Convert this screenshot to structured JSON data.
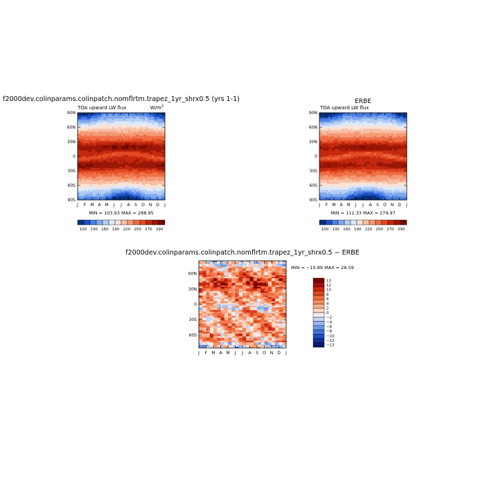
{
  "chart_data": [
    {
      "type": "heatmap",
      "title": "f2000dev.colinparams.colinpatch.nomflrtm.trapez_1yr_shrx0.5 (yrs 1-1)",
      "subtitle": "TOA upward LW flux",
      "units_base": "W/m",
      "units_exp": "2",
      "stats": "MIN = 103.93  MAX = 288.95",
      "x_ticks": [
        "J",
        "F",
        "M",
        "A",
        "M",
        "J",
        "J",
        "A",
        "S",
        "O",
        "N",
        "D",
        "J"
      ],
      "y_ticks": [
        {
          "lat": 90,
          "label": "90N"
        },
        {
          "lat": 60,
          "label": "60N"
        },
        {
          "lat": 30,
          "label": "30N"
        },
        {
          "lat": 0,
          "label": "0"
        },
        {
          "lat": -30,
          "label": "30S"
        },
        {
          "lat": -60,
          "label": "60S"
        },
        {
          "lat": -90,
          "label": "90S"
        }
      ],
      "ylim": [
        -90,
        90
      ],
      "colorbar": {
        "labels": [
          "100",
          "130",
          "160",
          "190",
          "220",
          "250",
          "270",
          "290"
        ],
        "colors": [
          "#08307a",
          "#1d4fc4",
          "#4a7fe6",
          "#7fa9ee",
          "#b3cdf5",
          "#dfe9f9",
          "#fbe2d4",
          "#f9bfa3",
          "#f59a76",
          "#ef6f47",
          "#e24a24",
          "#c4290f",
          "#9b1605",
          "#730900"
        ]
      }
    },
    {
      "type": "heatmap",
      "title": "ERBE",
      "subtitle": "TOA upward LW flux",
      "stats": "MIN = 111.33  MAX = 279.97",
      "x_ticks": [
        "J",
        "F",
        "M",
        "A",
        "M",
        "J",
        "J",
        "A",
        "S",
        "O",
        "N",
        "D",
        "J"
      ],
      "y_ticks": [
        {
          "lat": 90,
          "label": "90N"
        },
        {
          "lat": 60,
          "label": "60N"
        },
        {
          "lat": 30,
          "label": "30N"
        },
        {
          "lat": 0,
          "label": "0"
        },
        {
          "lat": -30,
          "label": "30S"
        },
        {
          "lat": -60,
          "label": "60S"
        },
        {
          "lat": -90,
          "label": "90S"
        }
      ],
      "ylim": [
        -90,
        90
      ],
      "colorbar": {
        "labels": [
          "100",
          "130",
          "160",
          "190",
          "220",
          "250",
          "270",
          "290"
        ],
        "colors": [
          "#08307a",
          "#1d4fc4",
          "#4a7fe6",
          "#7fa9ee",
          "#b3cdf5",
          "#dfe9f9",
          "#fbe2d4",
          "#f9bfa3",
          "#f59a76",
          "#ef6f47",
          "#e24a24",
          "#c4290f",
          "#9b1605",
          "#730900"
        ]
      }
    },
    {
      "type": "heatmap",
      "title": "f2000dev.colinparams.colinpatch.nomflrtm.trapez_1yr_shrx0.5 − ERBE",
      "stats": "MIN = −10.89  MAX =  28.59",
      "x_ticks": [
        "J",
        "F",
        "M",
        "A",
        "M",
        "J",
        "J",
        "A",
        "S",
        "O",
        "N",
        "D",
        "J"
      ],
      "y_ticks": [
        {
          "lat": 60,
          "label": "60N"
        },
        {
          "lat": 30,
          "label": "30N"
        },
        {
          "lat": 0,
          "label": "0"
        },
        {
          "lat": -30,
          "label": "30S"
        },
        {
          "lat": -60,
          "label": "60S"
        }
      ],
      "ylim": [
        -85,
        85
      ],
      "colorbar": {
        "labels": [
          "13",
          "12",
          "10",
          "8",
          "6",
          "4",
          "2",
          "0",
          "−2",
          "−4",
          "−6",
          "−8",
          "−10",
          "−12",
          "−13"
        ],
        "colors": [
          "#7a0000",
          "#a50f0f",
          "#c8280f",
          "#e0461f",
          "#ee6a3d",
          "#f58c62",
          "#f9b08c",
          "#fbd3bb",
          "#f6ecec",
          "#c3d4f4",
          "#97b7ee",
          "#6b94e4",
          "#3f6fd7",
          "#1f4dbc",
          "#0f2f96",
          "#061a6b"
        ]
      }
    }
  ]
}
